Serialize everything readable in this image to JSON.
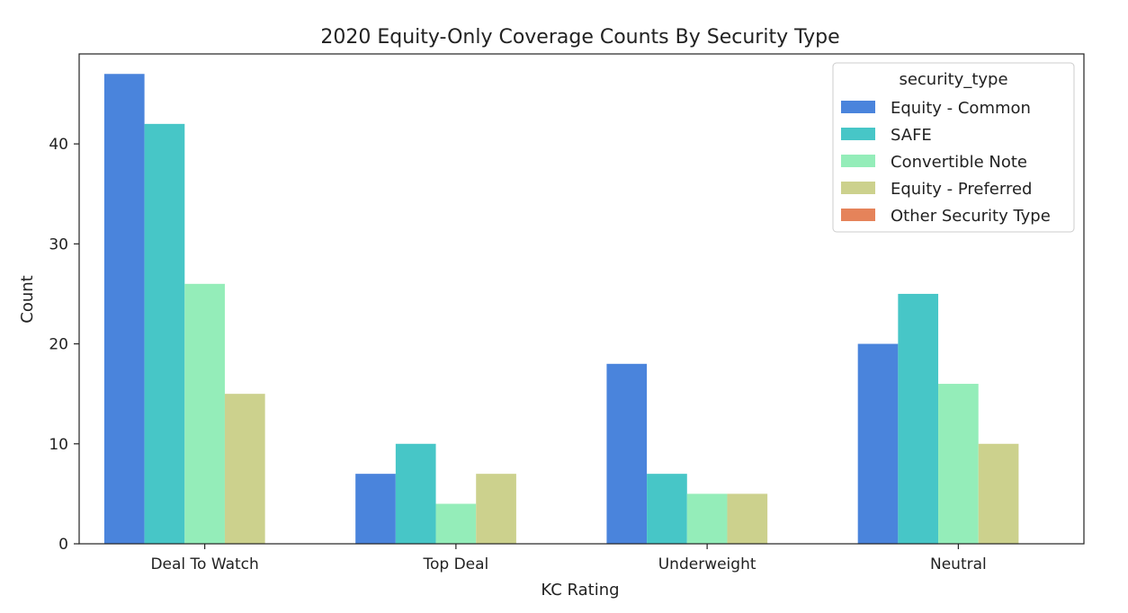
{
  "chart_data": {
    "type": "bar",
    "title": "2020 Equity-Only Coverage Counts By Security Type",
    "xlabel": "KC Rating",
    "ylabel": "Count",
    "categories": [
      "Deal To Watch",
      "Top Deal",
      "Underweight",
      "Neutral"
    ],
    "ylim": [
      0,
      49
    ],
    "yticks": [
      0,
      10,
      20,
      30,
      40
    ],
    "grid": false,
    "legend": {
      "title": "security_type",
      "position": "top-right"
    },
    "series": [
      {
        "name": "Equity - Common",
        "color": "#4a84dc",
        "values": [
          47,
          7,
          18,
          20
        ]
      },
      {
        "name": "SAFE",
        "color": "#47c6c7",
        "values": [
          42,
          10,
          7,
          25
        ]
      },
      {
        "name": "Convertible Note",
        "color": "#94edb9",
        "values": [
          26,
          4,
          5,
          16
        ]
      },
      {
        "name": "Equity - Preferred",
        "color": "#ccd18d",
        "values": [
          15,
          7,
          5,
          10
        ]
      },
      {
        "name": "Other Security Type",
        "color": "#e5835a",
        "values": [
          0,
          0,
          0,
          0
        ]
      }
    ]
  }
}
